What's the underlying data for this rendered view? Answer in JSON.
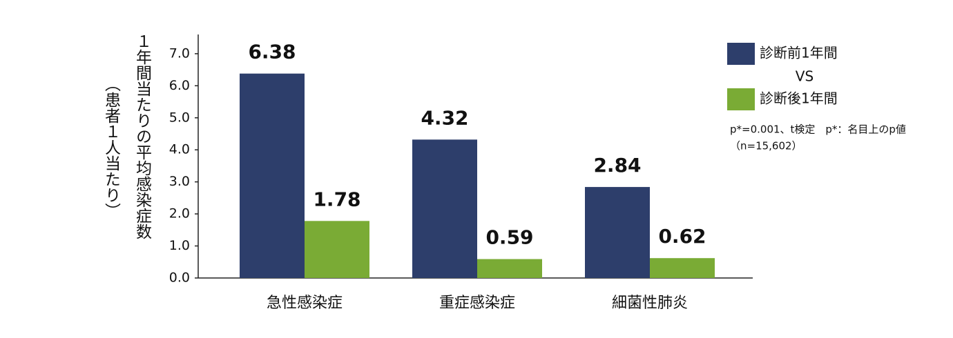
{
  "chart_data": {
    "type": "bar",
    "y_label_lines": [
      "１年間当たりの平均感染症数",
      "（患者１人当たり）"
    ],
    "categories": [
      "急性感染症",
      "重症感染症",
      "細菌性肺炎"
    ],
    "series": [
      {
        "name": "診断前1年間",
        "color": "#2d3e6b",
        "values": [
          6.38,
          4.32,
          2.84
        ]
      },
      {
        "name": "診断後1年間",
        "color": "#7aab35",
        "values": [
          1.78,
          0.59,
          0.62
        ]
      }
    ],
    "legend_separator": "VS",
    "notes": [
      "p*=0.001、t検定　p*：名目上のp値",
      "（n=15,602）"
    ],
    "ylim": [
      0,
      7.6
    ],
    "yticks": [
      {
        "value": 0,
        "label": "0.0"
      },
      {
        "value": 1,
        "label": "1.0"
      },
      {
        "value": 2,
        "label": "2.0"
      },
      {
        "value": 3,
        "label": "3.0"
      },
      {
        "value": 4,
        "label": "4.0"
      },
      {
        "value": 5,
        "label": "5.0"
      },
      {
        "value": 6,
        "label": "6.0"
      },
      {
        "value": 7,
        "label": "7.0"
      }
    ],
    "legend_position": "upper right"
  }
}
